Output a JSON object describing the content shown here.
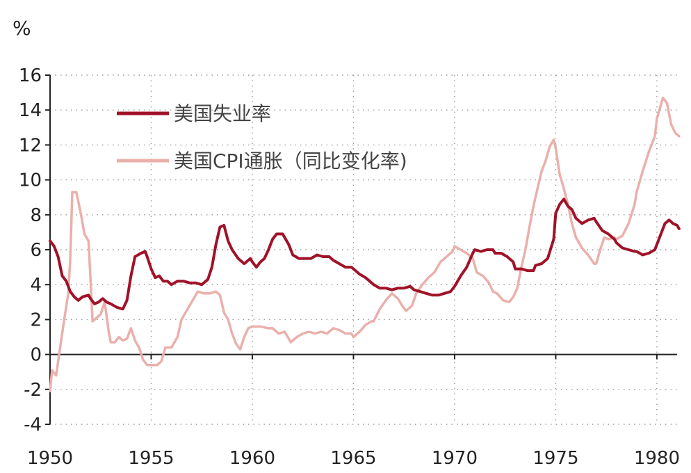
{
  "chart_data": {
    "type": "line",
    "unit_label": "%",
    "y_ticks": [
      "16",
      "14",
      "12",
      "10",
      "8",
      "6",
      "4",
      "2",
      "0",
      "-2",
      "-4"
    ],
    "x_ticks": [
      "1950",
      "1955",
      "1960",
      "1965",
      "1970",
      "1975",
      "1980"
    ],
    "ylim": [
      -4,
      16
    ],
    "xlim": [
      1950,
      1981
    ],
    "grid": true,
    "legend_position": "top-left",
    "series": [
      {
        "name": "美国失业率",
        "color": "#a01228",
        "points": [
          [
            1950.0,
            6.5
          ],
          [
            1950.2,
            6.2
          ],
          [
            1950.4,
            5.6
          ],
          [
            1950.6,
            4.5
          ],
          [
            1950.8,
            4.2
          ],
          [
            1951.0,
            3.6
          ],
          [
            1951.2,
            3.3
          ],
          [
            1951.4,
            3.1
          ],
          [
            1951.6,
            3.3
          ],
          [
            1951.9,
            3.4
          ],
          [
            1952.0,
            3.2
          ],
          [
            1952.2,
            2.9
          ],
          [
            1952.4,
            3.0
          ],
          [
            1952.6,
            3.2
          ],
          [
            1952.8,
            3.0
          ],
          [
            1953.0,
            2.9
          ],
          [
            1953.3,
            2.7
          ],
          [
            1953.6,
            2.6
          ],
          [
            1953.8,
            3.1
          ],
          [
            1954.0,
            4.5
          ],
          [
            1954.2,
            5.6
          ],
          [
            1954.5,
            5.8
          ],
          [
            1954.7,
            5.9
          ],
          [
            1954.8,
            5.6
          ],
          [
            1955.0,
            4.9
          ],
          [
            1955.2,
            4.4
          ],
          [
            1955.4,
            4.5
          ],
          [
            1955.6,
            4.2
          ],
          [
            1955.8,
            4.2
          ],
          [
            1956.0,
            4.0
          ],
          [
            1956.3,
            4.2
          ],
          [
            1956.6,
            4.2
          ],
          [
            1956.9,
            4.1
          ],
          [
            1957.2,
            4.1
          ],
          [
            1957.5,
            4.0
          ],
          [
            1957.8,
            4.3
          ],
          [
            1958.0,
            5.0
          ],
          [
            1958.2,
            6.3
          ],
          [
            1958.4,
            7.3
          ],
          [
            1958.6,
            7.4
          ],
          [
            1958.8,
            6.5
          ],
          [
            1959.0,
            6.0
          ],
          [
            1959.3,
            5.5
          ],
          [
            1959.6,
            5.2
          ],
          [
            1959.9,
            5.5
          ],
          [
            1960.0,
            5.3
          ],
          [
            1960.2,
            5.0
          ],
          [
            1960.4,
            5.3
          ],
          [
            1960.6,
            5.5
          ],
          [
            1960.8,
            6.0
          ],
          [
            1961.0,
            6.6
          ],
          [
            1961.2,
            6.9
          ],
          [
            1961.5,
            6.9
          ],
          [
            1961.8,
            6.3
          ],
          [
            1962.0,
            5.7
          ],
          [
            1962.3,
            5.5
          ],
          [
            1962.6,
            5.5
          ],
          [
            1962.9,
            5.5
          ],
          [
            1963.2,
            5.7
          ],
          [
            1963.5,
            5.6
          ],
          [
            1963.8,
            5.6
          ],
          [
            1964.0,
            5.4
          ],
          [
            1964.3,
            5.2
          ],
          [
            1964.6,
            5.0
          ],
          [
            1964.9,
            5.0
          ],
          [
            1965.0,
            4.9
          ],
          [
            1965.3,
            4.6
          ],
          [
            1965.6,
            4.4
          ],
          [
            1965.9,
            4.1
          ],
          [
            1966.0,
            4.0
          ],
          [
            1966.3,
            3.8
          ],
          [
            1966.6,
            3.8
          ],
          [
            1966.9,
            3.7
          ],
          [
            1967.2,
            3.8
          ],
          [
            1967.5,
            3.8
          ],
          [
            1967.8,
            3.9
          ],
          [
            1968.0,
            3.7
          ],
          [
            1968.3,
            3.6
          ],
          [
            1968.6,
            3.5
          ],
          [
            1968.9,
            3.4
          ],
          [
            1969.2,
            3.4
          ],
          [
            1969.5,
            3.5
          ],
          [
            1969.8,
            3.6
          ],
          [
            1970.0,
            3.9
          ],
          [
            1970.3,
            4.5
          ],
          [
            1970.6,
            5.0
          ],
          [
            1970.9,
            5.8
          ],
          [
            1971.0,
            6.0
          ],
          [
            1971.3,
            5.9
          ],
          [
            1971.6,
            6.0
          ],
          [
            1971.9,
            6.0
          ],
          [
            1972.0,
            5.8
          ],
          [
            1972.3,
            5.8
          ],
          [
            1972.6,
            5.6
          ],
          [
            1972.9,
            5.3
          ],
          [
            1973.0,
            4.9
          ],
          [
            1973.3,
            4.9
          ],
          [
            1973.6,
            4.8
          ],
          [
            1973.9,
            4.8
          ],
          [
            1974.0,
            5.1
          ],
          [
            1974.3,
            5.2
          ],
          [
            1974.6,
            5.5
          ],
          [
            1974.9,
            6.6
          ],
          [
            1975.0,
            8.1
          ],
          [
            1975.2,
            8.6
          ],
          [
            1975.4,
            8.9
          ],
          [
            1975.6,
            8.5
          ],
          [
            1975.8,
            8.3
          ],
          [
            1976.0,
            7.8
          ],
          [
            1976.3,
            7.5
          ],
          [
            1976.6,
            7.7
          ],
          [
            1976.9,
            7.8
          ],
          [
            1977.0,
            7.6
          ],
          [
            1977.3,
            7.1
          ],
          [
            1977.6,
            6.9
          ],
          [
            1977.9,
            6.6
          ],
          [
            1978.0,
            6.4
          ],
          [
            1978.3,
            6.1
          ],
          [
            1978.6,
            6.0
          ],
          [
            1978.9,
            5.9
          ],
          [
            1979.0,
            5.9
          ],
          [
            1979.3,
            5.7
          ],
          [
            1979.6,
            5.8
          ],
          [
            1979.9,
            6.0
          ],
          [
            1980.0,
            6.3
          ],
          [
            1980.2,
            6.9
          ],
          [
            1980.4,
            7.5
          ],
          [
            1980.6,
            7.7
          ],
          [
            1980.8,
            7.5
          ],
          [
            1981.0,
            7.4
          ],
          [
            1981.1,
            7.2
          ]
        ]
      },
      {
        "name": "美国CPI通胀（同比变化率)",
        "color": "#eab0ab",
        "points": [
          [
            1950.0,
            -2.1
          ],
          [
            1950.1,
            -0.9
          ],
          [
            1950.3,
            -1.2
          ],
          [
            1950.5,
            0.4
          ],
          [
            1950.7,
            2.0
          ],
          [
            1950.9,
            3.5
          ],
          [
            1951.0,
            5.5
          ],
          [
            1951.1,
            9.3
          ],
          [
            1951.3,
            9.3
          ],
          [
            1951.5,
            8.2
          ],
          [
            1951.7,
            6.9
          ],
          [
            1951.9,
            6.5
          ],
          [
            1952.0,
            4.3
          ],
          [
            1952.1,
            1.9
          ],
          [
            1952.3,
            2.1
          ],
          [
            1952.5,
            2.3
          ],
          [
            1952.7,
            3.0
          ],
          [
            1952.9,
            1.3
          ],
          [
            1953.0,
            0.7
          ],
          [
            1953.2,
            0.7
          ],
          [
            1953.4,
            1.0
          ],
          [
            1953.6,
            0.8
          ],
          [
            1953.8,
            0.9
          ],
          [
            1954.0,
            1.5
          ],
          [
            1954.2,
            0.8
          ],
          [
            1954.4,
            0.4
          ],
          [
            1954.6,
            -0.3
          ],
          [
            1954.8,
            -0.6
          ],
          [
            1955.0,
            -0.6
          ],
          [
            1955.3,
            -0.6
          ],
          [
            1955.5,
            -0.4
          ],
          [
            1955.7,
            0.4
          ],
          [
            1956.0,
            0.4
          ],
          [
            1956.3,
            1.0
          ],
          [
            1956.5,
            2.0
          ],
          [
            1956.7,
            2.4
          ],
          [
            1957.0,
            3.0
          ],
          [
            1957.3,
            3.6
          ],
          [
            1957.6,
            3.5
          ],
          [
            1957.9,
            3.5
          ],
          [
            1958.2,
            3.6
          ],
          [
            1958.4,
            3.4
          ],
          [
            1958.6,
            2.4
          ],
          [
            1958.8,
            2.0
          ],
          [
            1959.0,
            1.2
          ],
          [
            1959.2,
            0.6
          ],
          [
            1959.4,
            0.3
          ],
          [
            1959.6,
            1.0
          ],
          [
            1959.8,
            1.5
          ],
          [
            1960.0,
            1.6
          ],
          [
            1960.4,
            1.6
          ],
          [
            1960.8,
            1.5
          ],
          [
            1961.0,
            1.5
          ],
          [
            1961.3,
            1.2
          ],
          [
            1961.6,
            1.3
          ],
          [
            1961.9,
            0.7
          ],
          [
            1962.2,
            1.0
          ],
          [
            1962.5,
            1.2
          ],
          [
            1962.8,
            1.3
          ],
          [
            1963.1,
            1.2
          ],
          [
            1963.4,
            1.3
          ],
          [
            1963.7,
            1.2
          ],
          [
            1964.0,
            1.5
          ],
          [
            1964.3,
            1.4
          ],
          [
            1964.6,
            1.2
          ],
          [
            1964.9,
            1.2
          ],
          [
            1965.0,
            1.0
          ],
          [
            1965.3,
            1.3
          ],
          [
            1965.6,
            1.7
          ],
          [
            1965.9,
            1.9
          ],
          [
            1966.0,
            1.9
          ],
          [
            1966.3,
            2.6
          ],
          [
            1966.6,
            3.1
          ],
          [
            1966.9,
            3.5
          ],
          [
            1967.2,
            3.2
          ],
          [
            1967.4,
            2.8
          ],
          [
            1967.6,
            2.5
          ],
          [
            1967.9,
            2.8
          ],
          [
            1968.1,
            3.5
          ],
          [
            1968.4,
            4.0
          ],
          [
            1968.7,
            4.4
          ],
          [
            1969.0,
            4.7
          ],
          [
            1969.3,
            5.3
          ],
          [
            1969.6,
            5.6
          ],
          [
            1969.9,
            5.9
          ],
          [
            1970.0,
            6.2
          ],
          [
            1970.3,
            6.0
          ],
          [
            1970.6,
            5.8
          ],
          [
            1970.9,
            5.5
          ],
          [
            1971.1,
            4.7
          ],
          [
            1971.4,
            4.5
          ],
          [
            1971.7,
            4.1
          ],
          [
            1971.9,
            3.6
          ],
          [
            1972.1,
            3.5
          ],
          [
            1972.4,
            3.1
          ],
          [
            1972.7,
            3.0
          ],
          [
            1972.9,
            3.3
          ],
          [
            1973.1,
            3.8
          ],
          [
            1973.3,
            5.0
          ],
          [
            1973.5,
            6.0
          ],
          [
            1973.7,
            7.3
          ],
          [
            1973.9,
            8.5
          ],
          [
            1974.1,
            9.5
          ],
          [
            1974.3,
            10.5
          ],
          [
            1974.5,
            11.1
          ],
          [
            1974.7,
            11.9
          ],
          [
            1974.9,
            12.3
          ],
          [
            1975.0,
            11.8
          ],
          [
            1975.2,
            10.3
          ],
          [
            1975.4,
            9.5
          ],
          [
            1975.6,
            8.6
          ],
          [
            1975.8,
            7.5
          ],
          [
            1976.0,
            6.7
          ],
          [
            1976.3,
            6.1
          ],
          [
            1976.6,
            5.7
          ],
          [
            1976.9,
            5.2
          ],
          [
            1977.0,
            5.2
          ],
          [
            1977.2,
            6.0
          ],
          [
            1977.4,
            6.7
          ],
          [
            1977.6,
            6.6
          ],
          [
            1977.9,
            6.7
          ],
          [
            1978.0,
            6.6
          ],
          [
            1978.3,
            6.8
          ],
          [
            1978.6,
            7.5
          ],
          [
            1978.9,
            8.6
          ],
          [
            1979.0,
            9.3
          ],
          [
            1979.3,
            10.5
          ],
          [
            1979.6,
            11.6
          ],
          [
            1979.9,
            12.5
          ],
          [
            1980.0,
            13.5
          ],
          [
            1980.2,
            14.3
          ],
          [
            1980.3,
            14.7
          ],
          [
            1980.5,
            14.4
          ],
          [
            1980.7,
            13.2
          ],
          [
            1980.9,
            12.7
          ],
          [
            1981.1,
            12.5
          ]
        ]
      }
    ]
  }
}
